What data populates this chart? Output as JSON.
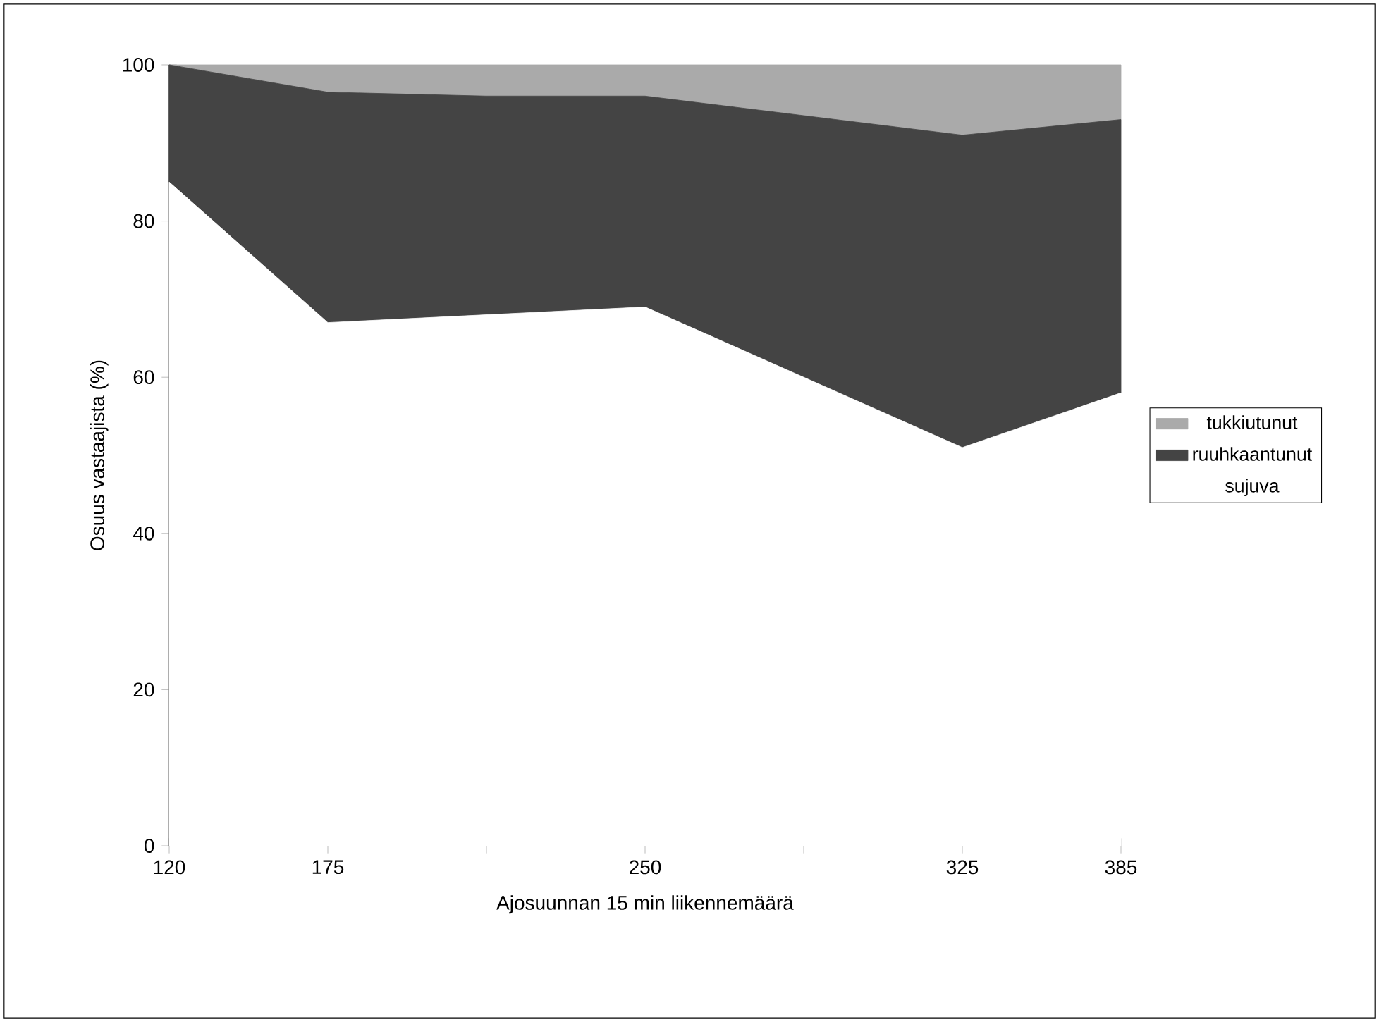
{
  "chart_data": {
    "type": "area",
    "stacked": true,
    "xlabel": "Ajosuunnan 15 min liikennemäärä",
    "ylabel": "Osuus vastaajista (%)",
    "categories": [
      "120",
      "175",
      null,
      "250",
      null,
      "325",
      "385"
    ],
    "series": [
      {
        "name": "sujuva",
        "color": "#ffffff",
        "values": [
          85,
          67,
          68,
          69,
          60,
          51,
          58
        ]
      },
      {
        "name": "ruuhkaantunut",
        "color": "#444444",
        "values": [
          15,
          29.5,
          28,
          27,
          33.5,
          40,
          35
        ]
      },
      {
        "name": "tukkiutunut",
        "color": "#aaaaaa",
        "values": [
          0,
          3.5,
          4,
          4,
          6.5,
          9,
          7
        ]
      }
    ],
    "ylim": [
      0,
      100
    ],
    "yticks": [
      0,
      20,
      40,
      60,
      80,
      100
    ],
    "legend": "right",
    "grid": false
  }
}
